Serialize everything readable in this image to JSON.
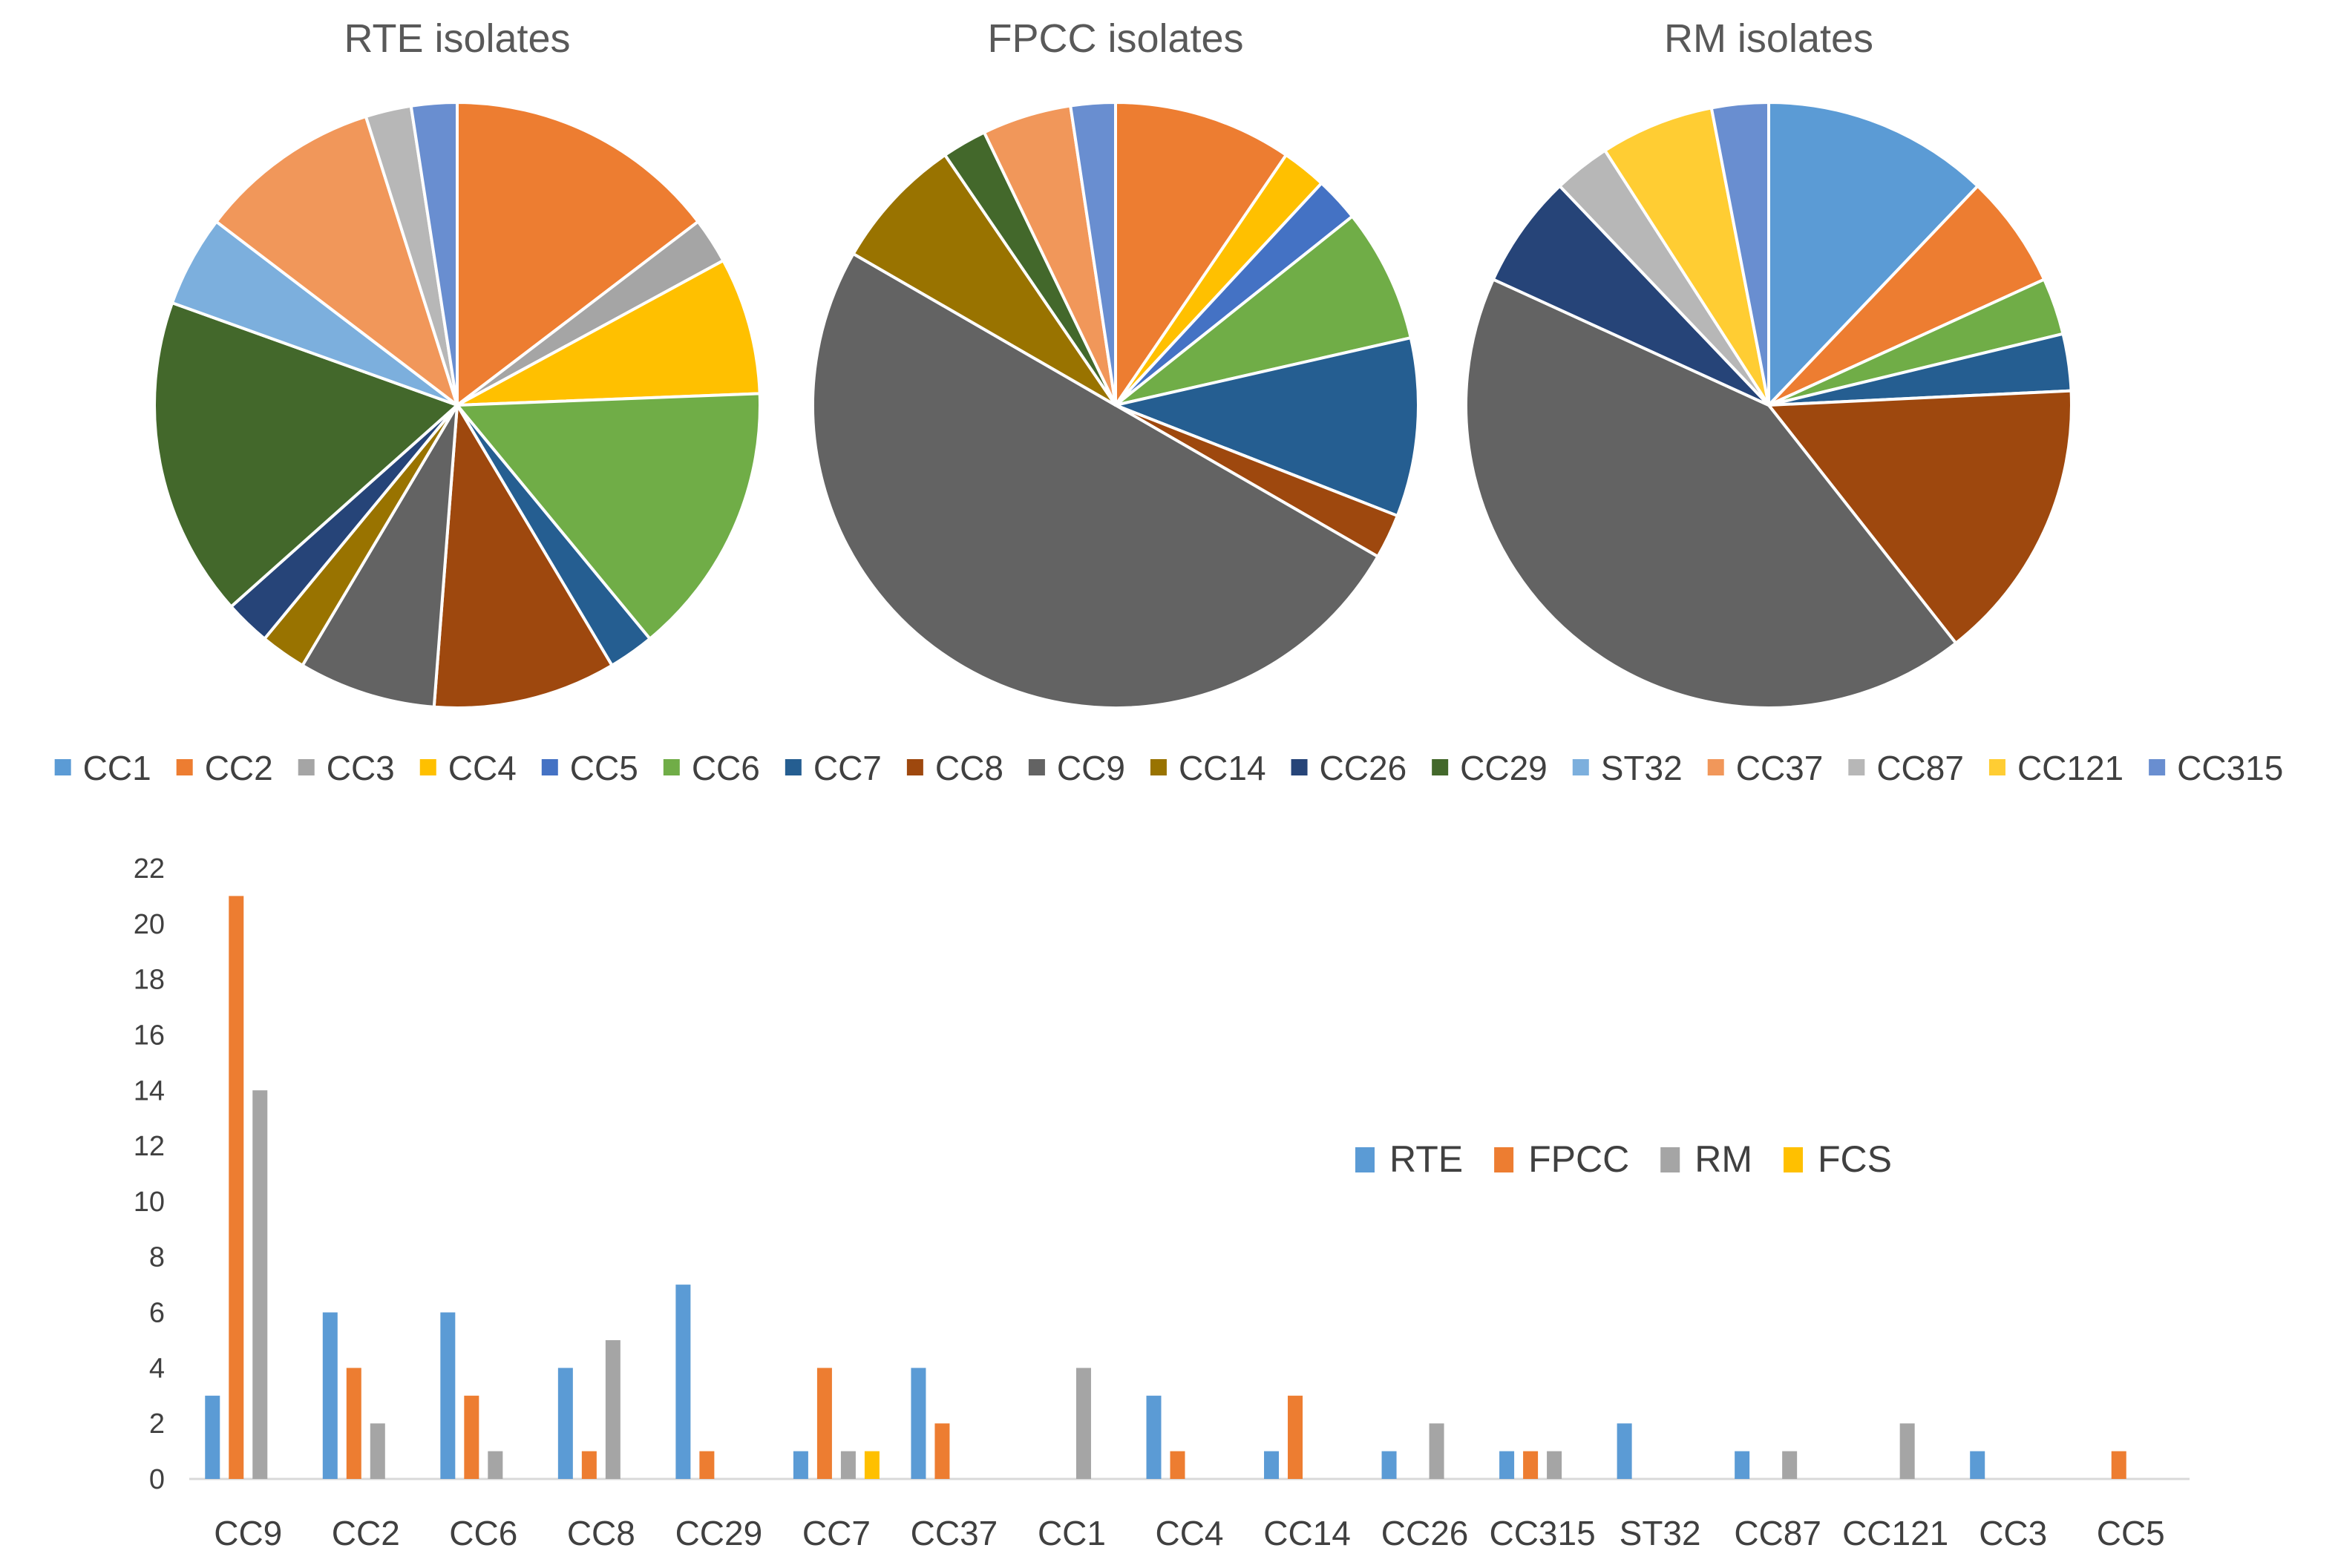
{
  "chart_data": [
    {
      "type": "pie",
      "title": "RTE isolates",
      "slices": [
        {
          "label": "CC2",
          "value": 6,
          "color": "#ED7D31"
        },
        {
          "label": "CC3",
          "value": 1,
          "color": "#A5A5A5"
        },
        {
          "label": "CC4",
          "value": 3,
          "color": "#FFC000"
        },
        {
          "label": "CC6",
          "value": 6,
          "color": "#70AD47"
        },
        {
          "label": "CC7",
          "value": 1,
          "color": "#255E91"
        },
        {
          "label": "CC8",
          "value": 4,
          "color": "#9E480E"
        },
        {
          "label": "CC9",
          "value": 3,
          "color": "#636363"
        },
        {
          "label": "CC14",
          "value": 1,
          "color": "#997300"
        },
        {
          "label": "CC26",
          "value": 1,
          "color": "#264478"
        },
        {
          "label": "CC29",
          "value": 7,
          "color": "#43682B"
        },
        {
          "label": "ST32",
          "value": 2,
          "color": "#7CAFDD"
        },
        {
          "label": "CC37",
          "value": 4,
          "color": "#F1975A"
        },
        {
          "label": "CC87",
          "value": 1,
          "color": "#B7B7B7"
        },
        {
          "label": "CC315",
          "value": 1,
          "color": "#698ED0"
        }
      ]
    },
    {
      "type": "pie",
      "title": "FPCC isolates",
      "slices": [
        {
          "label": "CC2",
          "value": 4,
          "color": "#ED7D31"
        },
        {
          "label": "CC4",
          "value": 1,
          "color": "#FFC000"
        },
        {
          "label": "CC5",
          "value": 1,
          "color": "#4472C4"
        },
        {
          "label": "CC6",
          "value": 3,
          "color": "#70AD47"
        },
        {
          "label": "CC7",
          "value": 4,
          "color": "#255E91"
        },
        {
          "label": "CC8",
          "value": 1,
          "color": "#9E480E"
        },
        {
          "label": "CC9",
          "value": 21,
          "color": "#636363"
        },
        {
          "label": "CC14",
          "value": 3,
          "color": "#997300"
        },
        {
          "label": "CC29",
          "value": 1,
          "color": "#43682B"
        },
        {
          "label": "CC37",
          "value": 2,
          "color": "#F1975A"
        },
        {
          "label": "CC315",
          "value": 1,
          "color": "#698ED0"
        }
      ]
    },
    {
      "type": "pie",
      "title": "RM isolates",
      "slices": [
        {
          "label": "CC1",
          "value": 4,
          "color": "#5B9BD5"
        },
        {
          "label": "CC2",
          "value": 2,
          "color": "#ED7D31"
        },
        {
          "label": "CC6",
          "value": 1,
          "color": "#70AD47"
        },
        {
          "label": "CC7",
          "value": 1,
          "color": "#255E91"
        },
        {
          "label": "CC8",
          "value": 5,
          "color": "#9E480E"
        },
        {
          "label": "CC9",
          "value": 14,
          "color": "#636363"
        },
        {
          "label": "CC26",
          "value": 2,
          "color": "#264478"
        },
        {
          "label": "CC87",
          "value": 1,
          "color": "#B7B7B7"
        },
        {
          "label": "CC121",
          "value": 2,
          "color": "#FFCD33"
        },
        {
          "label": "CC315",
          "value": 1,
          "color": "#698ED0"
        }
      ]
    },
    {
      "type": "bar",
      "title": "",
      "categories": [
        "CC9",
        "CC2",
        "CC6",
        "CC8",
        "CC29",
        "CC7",
        "CC37",
        "CC1",
        "CC4",
        "CC14",
        "CC26",
        "CC315",
        "ST32",
        "CC87",
        "CC121",
        "CC3",
        "CC5"
      ],
      "series": [
        {
          "name": "RTE",
          "color": "#5B9BD5",
          "values": [
            3,
            6,
            6,
            4,
            7,
            1,
            4,
            0,
            3,
            1,
            1,
            1,
            2,
            1,
            0,
            1,
            0
          ]
        },
        {
          "name": "FPCC",
          "color": "#ED7D31",
          "values": [
            21,
            4,
            3,
            1,
            1,
            4,
            2,
            0,
            1,
            3,
            0,
            1,
            0,
            0,
            0,
            0,
            1
          ]
        },
        {
          "name": "RM",
          "color": "#A5A5A5",
          "values": [
            14,
            2,
            1,
            5,
            0,
            1,
            0,
            4,
            0,
            0,
            2,
            1,
            0,
            1,
            2,
            0,
            0
          ]
        },
        {
          "name": "FCS",
          "color": "#FFC000",
          "values": [
            0,
            0,
            0,
            0,
            0,
            1,
            0,
            0,
            0,
            0,
            0,
            0,
            0,
            0,
            0,
            0,
            0
          ]
        }
      ],
      "ylim": [
        0,
        22
      ],
      "yticks": [
        0,
        2,
        4,
        6,
        8,
        10,
        12,
        14,
        16,
        18,
        20,
        22
      ],
      "xlabel": "",
      "ylabel": "",
      "grid": false,
      "legend_position": "center-right"
    }
  ],
  "legend": {
    "items": [
      {
        "label": "CC1",
        "color": "#5B9BD5"
      },
      {
        "label": "CC2",
        "color": "#ED7D31"
      },
      {
        "label": "CC3",
        "color": "#A5A5A5"
      },
      {
        "label": "CC4",
        "color": "#FFC000"
      },
      {
        "label": "CC5",
        "color": "#4472C4"
      },
      {
        "label": "CC6",
        "color": "#70AD47"
      },
      {
        "label": "CC7",
        "color": "#255E91"
      },
      {
        "label": "CC8",
        "color": "#9E480E"
      },
      {
        "label": "CC9",
        "color": "#636363"
      },
      {
        "label": "CC14",
        "color": "#997300"
      },
      {
        "label": "CC26",
        "color": "#264478"
      },
      {
        "label": "CC29",
        "color": "#43682B"
      },
      {
        "label": "ST32",
        "color": "#7CAFDD"
      },
      {
        "label": "CC37",
        "color": "#F1975A"
      },
      {
        "label": "CC87",
        "color": "#B7B7B7"
      },
      {
        "label": "CC121",
        "color": "#FFCD33"
      },
      {
        "label": "CC315",
        "color": "#698ED0"
      }
    ]
  }
}
